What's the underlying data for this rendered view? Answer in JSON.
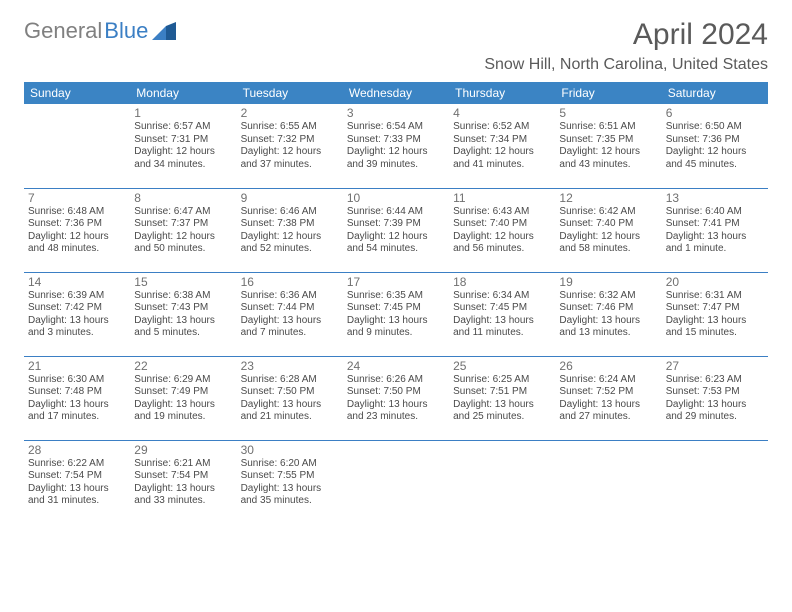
{
  "logo": {
    "text1": "General",
    "text2": "Blue"
  },
  "title": "April 2024",
  "location": "Snow Hill, North Carolina, United States",
  "header_bg": "#3b84c4",
  "header_fg": "#ffffff",
  "rule_color": "#3b7fc4",
  "text_color": "#4a4a4a",
  "days": [
    "Sunday",
    "Monday",
    "Tuesday",
    "Wednesday",
    "Thursday",
    "Friday",
    "Saturday"
  ],
  "weeks": [
    [
      null,
      {
        "n": "1",
        "sr": "6:57 AM",
        "ss": "7:31 PM",
        "dl": "12 hours and 34 minutes."
      },
      {
        "n": "2",
        "sr": "6:55 AM",
        "ss": "7:32 PM",
        "dl": "12 hours and 37 minutes."
      },
      {
        "n": "3",
        "sr": "6:54 AM",
        "ss": "7:33 PM",
        "dl": "12 hours and 39 minutes."
      },
      {
        "n": "4",
        "sr": "6:52 AM",
        "ss": "7:34 PM",
        "dl": "12 hours and 41 minutes."
      },
      {
        "n": "5",
        "sr": "6:51 AM",
        "ss": "7:35 PM",
        "dl": "12 hours and 43 minutes."
      },
      {
        "n": "6",
        "sr": "6:50 AM",
        "ss": "7:36 PM",
        "dl": "12 hours and 45 minutes."
      }
    ],
    [
      {
        "n": "7",
        "sr": "6:48 AM",
        "ss": "7:36 PM",
        "dl": "12 hours and 48 minutes."
      },
      {
        "n": "8",
        "sr": "6:47 AM",
        "ss": "7:37 PM",
        "dl": "12 hours and 50 minutes."
      },
      {
        "n": "9",
        "sr": "6:46 AM",
        "ss": "7:38 PM",
        "dl": "12 hours and 52 minutes."
      },
      {
        "n": "10",
        "sr": "6:44 AM",
        "ss": "7:39 PM",
        "dl": "12 hours and 54 minutes."
      },
      {
        "n": "11",
        "sr": "6:43 AM",
        "ss": "7:40 PM",
        "dl": "12 hours and 56 minutes."
      },
      {
        "n": "12",
        "sr": "6:42 AM",
        "ss": "7:40 PM",
        "dl": "12 hours and 58 minutes."
      },
      {
        "n": "13",
        "sr": "6:40 AM",
        "ss": "7:41 PM",
        "dl": "13 hours and 1 minute."
      }
    ],
    [
      {
        "n": "14",
        "sr": "6:39 AM",
        "ss": "7:42 PM",
        "dl": "13 hours and 3 minutes."
      },
      {
        "n": "15",
        "sr": "6:38 AM",
        "ss": "7:43 PM",
        "dl": "13 hours and 5 minutes."
      },
      {
        "n": "16",
        "sr": "6:36 AM",
        "ss": "7:44 PM",
        "dl": "13 hours and 7 minutes."
      },
      {
        "n": "17",
        "sr": "6:35 AM",
        "ss": "7:45 PM",
        "dl": "13 hours and 9 minutes."
      },
      {
        "n": "18",
        "sr": "6:34 AM",
        "ss": "7:45 PM",
        "dl": "13 hours and 11 minutes."
      },
      {
        "n": "19",
        "sr": "6:32 AM",
        "ss": "7:46 PM",
        "dl": "13 hours and 13 minutes."
      },
      {
        "n": "20",
        "sr": "6:31 AM",
        "ss": "7:47 PM",
        "dl": "13 hours and 15 minutes."
      }
    ],
    [
      {
        "n": "21",
        "sr": "6:30 AM",
        "ss": "7:48 PM",
        "dl": "13 hours and 17 minutes."
      },
      {
        "n": "22",
        "sr": "6:29 AM",
        "ss": "7:49 PM",
        "dl": "13 hours and 19 minutes."
      },
      {
        "n": "23",
        "sr": "6:28 AM",
        "ss": "7:50 PM",
        "dl": "13 hours and 21 minutes."
      },
      {
        "n": "24",
        "sr": "6:26 AM",
        "ss": "7:50 PM",
        "dl": "13 hours and 23 minutes."
      },
      {
        "n": "25",
        "sr": "6:25 AM",
        "ss": "7:51 PM",
        "dl": "13 hours and 25 minutes."
      },
      {
        "n": "26",
        "sr": "6:24 AM",
        "ss": "7:52 PM",
        "dl": "13 hours and 27 minutes."
      },
      {
        "n": "27",
        "sr": "6:23 AM",
        "ss": "7:53 PM",
        "dl": "13 hours and 29 minutes."
      }
    ],
    [
      {
        "n": "28",
        "sr": "6:22 AM",
        "ss": "7:54 PM",
        "dl": "13 hours and 31 minutes."
      },
      {
        "n": "29",
        "sr": "6:21 AM",
        "ss": "7:54 PM",
        "dl": "13 hours and 33 minutes."
      },
      {
        "n": "30",
        "sr": "6:20 AM",
        "ss": "7:55 PM",
        "dl": "13 hours and 35 minutes."
      },
      null,
      null,
      null,
      null
    ]
  ],
  "labels": {
    "sunrise": "Sunrise:",
    "sunset": "Sunset:",
    "daylight": "Daylight:"
  }
}
